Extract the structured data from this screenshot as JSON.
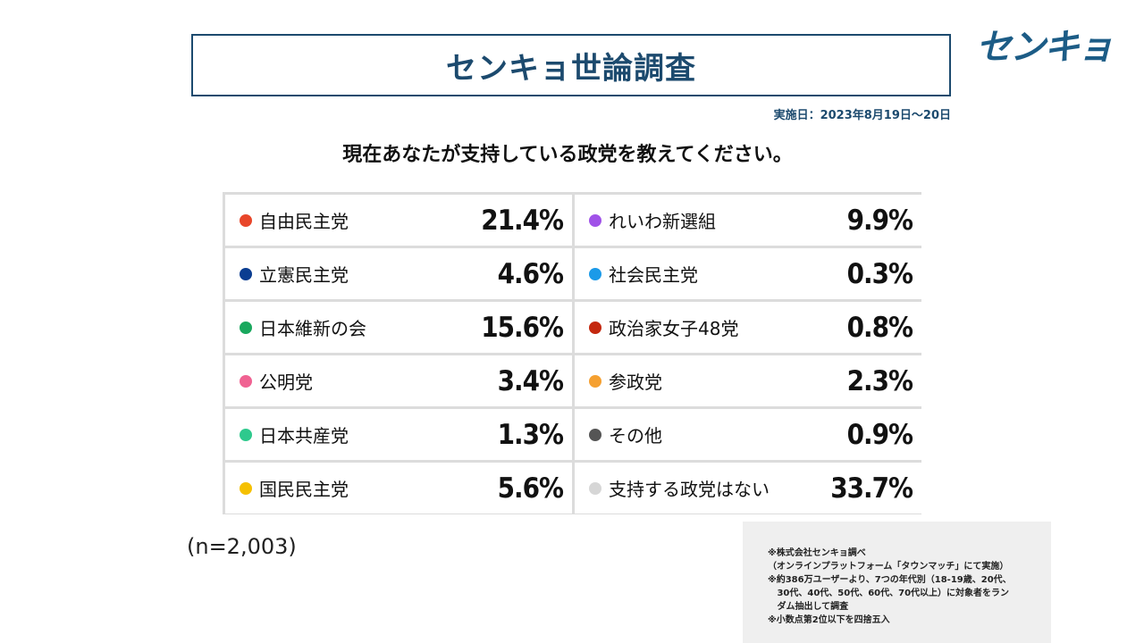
{
  "header": {
    "title": "センキョ世論調査",
    "logo_text": "センキョ",
    "date": "実施日：2023年8月19日〜20日"
  },
  "question": "現在あなたが支持している政党を教えてください。",
  "sample": "(n=2,003)",
  "note_lines": [
    "※株式会社センキョ調べ",
    "（オンラインプラットフォーム「タウンマッチ」にて実施）",
    "※約386万ユーザーより、7つの年代別（18-19歳、20代、",
    "   30代、40代、50代、60代、70代以上）に対象者をラン",
    "   ダム抽出して調査",
    "※小数点第2位以下を四捨五入"
  ],
  "chart_data": {
    "type": "table",
    "title": "現在あなたが支持している政党を教えてください。",
    "categories": [
      "自由民主党",
      "れいわ新選組",
      "立憲民主党",
      "社会民主党",
      "日本維新の会",
      "政治家女子48党",
      "公明党",
      "参政党",
      "日本共産党",
      "その他",
      "国民民主党",
      "支持する政党はない"
    ],
    "values": [
      21.4,
      9.9,
      4.6,
      0.3,
      15.6,
      0.8,
      3.4,
      2.3,
      1.3,
      0.9,
      5.6,
      33.7
    ],
    "value_labels": [
      "21.4%",
      "9.9%",
      "4.6%",
      "0.3%",
      "15.6%",
      "0.8%",
      "3.4%",
      "2.3%",
      "1.3%",
      "0.9%",
      "5.6%",
      "33.7%"
    ],
    "colors": [
      "#e8462a",
      "#a052e8",
      "#0a3d91",
      "#1b9ae8",
      "#1aa85e",
      "#c4280f",
      "#f06292",
      "#f5a030",
      "#2ec98d",
      "#555555",
      "#f5c000",
      "#d6d6d6"
    ],
    "unit": "%"
  }
}
